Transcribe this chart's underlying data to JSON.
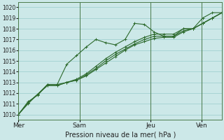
{
  "xlabel": "Pression niveau de la mer( hPa )",
  "bg_color": "#cce8e8",
  "grid_color": "#99cccc",
  "line_color": "#2d6a2d",
  "vline_color": "#4a7a4a",
  "ylim": [
    1009.5,
    1020.5
  ],
  "xlim": [
    0,
    10
  ],
  "yticks": [
    1010,
    1011,
    1012,
    1013,
    1014,
    1015,
    1016,
    1017,
    1018,
    1019,
    1020
  ],
  "day_labels": [
    "Mer",
    "Sam",
    "Jeu",
    "Ven"
  ],
  "day_positions": [
    0.0,
    3.0,
    6.5,
    9.0
  ],
  "series": [
    [
      1010.0,
      1011.1,
      1011.9,
      1012.8,
      1012.8,
      1014.7,
      1015.5,
      1016.3,
      1017.0,
      1016.7,
      1016.5,
      1017.0,
      1018.5,
      1018.4,
      1017.7,
      1017.3,
      1017.3,
      1018.0,
      1018.0,
      1019.0,
      1019.5,
      1019.5
    ],
    [
      1010.0,
      1011.1,
      1011.9,
      1012.7,
      1012.7,
      1013.0,
      1013.3,
      1013.8,
      1014.5,
      1015.2,
      1015.8,
      1016.3,
      1016.8,
      1017.2,
      1017.5,
      1017.5,
      1017.5,
      1018.0,
      1018.0,
      1018.5,
      1019.0,
      1019.5
    ],
    [
      1010.0,
      1011.2,
      1011.8,
      1012.8,
      1012.8,
      1013.0,
      1013.2,
      1013.7,
      1014.3,
      1015.0,
      1015.6,
      1016.1,
      1016.6,
      1017.0,
      1017.3,
      1017.3,
      1017.3,
      1017.8,
      1018.0,
      1018.5,
      1019.0,
      1019.5
    ],
    [
      1010.0,
      1011.0,
      1011.9,
      1012.7,
      1012.7,
      1013.0,
      1013.2,
      1013.6,
      1014.2,
      1014.8,
      1015.4,
      1016.0,
      1016.5,
      1016.8,
      1017.1,
      1017.2,
      1017.2,
      1017.7,
      1018.0,
      1018.5,
      1019.0,
      1019.5
    ]
  ],
  "ytick_fontsize": 5.5,
  "xtick_fontsize": 6.5,
  "xlabel_fontsize": 7.0,
  "linewidth": 0.8,
  "markersize": 2.5,
  "markeredgewidth": 0.7
}
